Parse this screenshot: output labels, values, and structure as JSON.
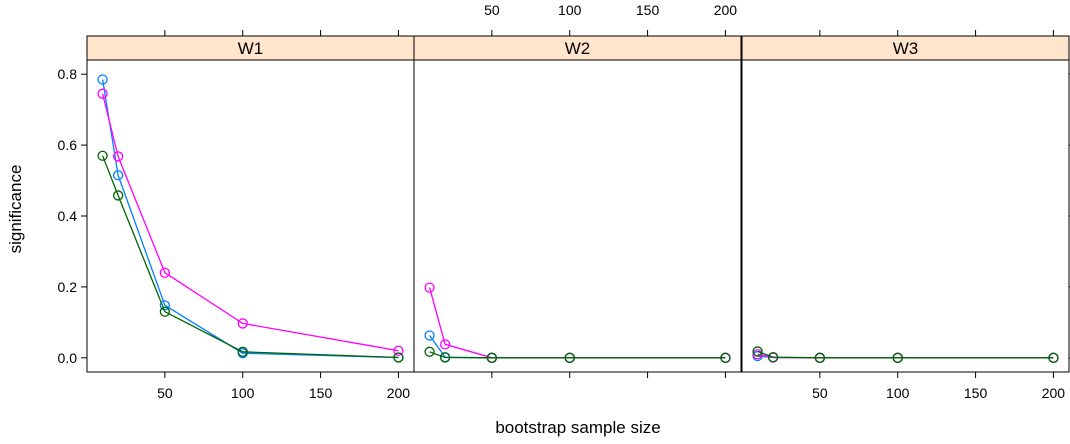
{
  "chart_data": {
    "type": "line",
    "xlabel": "bootstrap sample size",
    "ylabel": "significance",
    "xlim": [
      0,
      210
    ],
    "ylim": [
      -0.04,
      0.84
    ],
    "x_ticks": [
      50,
      100,
      150,
      200
    ],
    "x_tick_labels": [
      "50",
      "100",
      "150",
      "200"
    ],
    "y_ticks": [
      0.0,
      0.2,
      0.4,
      0.6,
      0.8
    ],
    "y_tick_labels": [
      "0.0",
      "0.2",
      "0.4",
      "0.6",
      "0.8"
    ],
    "panels": [
      {
        "name": "W1",
        "series": [
          {
            "color": "#0080ff",
            "x": [
              10,
              20,
              50,
              100,
              200
            ],
            "y": [
              0.785,
              0.515,
              0.148,
              0.013,
              0.001
            ]
          },
          {
            "color": "#ff00ff",
            "x": [
              10,
              20,
              50,
              100,
              200
            ],
            "y": [
              0.745,
              0.568,
              0.24,
              0.097,
              0.02
            ]
          },
          {
            "color": "#006400",
            "x": [
              10,
              20,
              50,
              100,
              200
            ],
            "y": [
              0.57,
              0.458,
              0.13,
              0.017,
              0.001
            ]
          }
        ]
      },
      {
        "name": "W2",
        "series": [
          {
            "color": "#0080ff",
            "x": [
              10,
              20,
              50,
              100,
              200
            ],
            "y": [
              0.063,
              0.002,
              0.0,
              0.0,
              0.0
            ]
          },
          {
            "color": "#ff00ff",
            "x": [
              10,
              20,
              50,
              100,
              200
            ],
            "y": [
              0.198,
              0.038,
              0.0,
              0.0,
              0.0
            ]
          },
          {
            "color": "#006400",
            "x": [
              10,
              20,
              50,
              100,
              200
            ],
            "y": [
              0.017,
              0.001,
              0.0,
              0.0,
              0.0
            ]
          }
        ]
      },
      {
        "name": "W3",
        "series": [
          {
            "color": "#0080ff",
            "x": [
              10,
              20,
              50,
              100,
              200
            ],
            "y": [
              0.005,
              0.001,
              0.0,
              0.0,
              0.0
            ]
          },
          {
            "color": "#ff00ff",
            "x": [
              10,
              20,
              50,
              100,
              200
            ],
            "y": [
              0.01,
              0.001,
              0.0,
              0.0,
              0.0
            ]
          },
          {
            "color": "#006400",
            "x": [
              10,
              20,
              50,
              100,
              200
            ],
            "y": [
              0.018,
              0.002,
              0.0,
              0.0,
              0.0
            ]
          }
        ]
      }
    ],
    "strip_color": "#ffe5cc",
    "grid": false,
    "layout": "1 row x 3 panels, shared axes, alternating tick sides"
  }
}
